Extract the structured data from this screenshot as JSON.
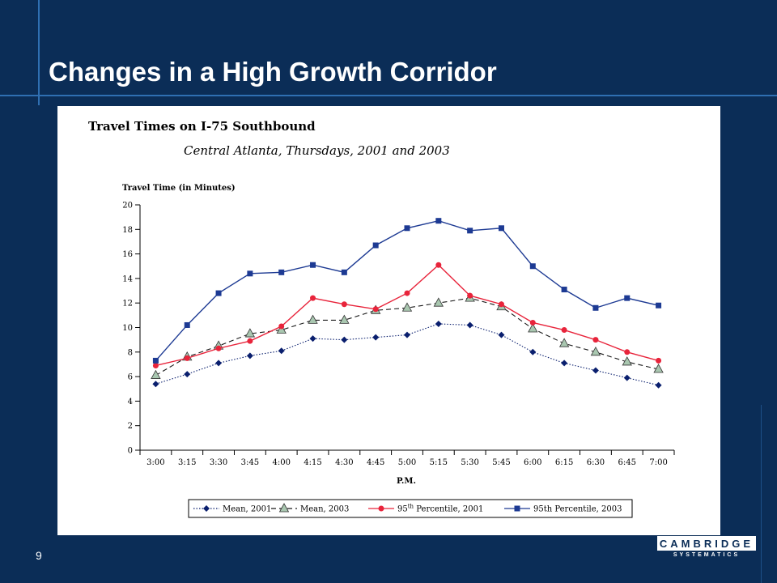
{
  "slide": {
    "title": "Changes in a High Growth Corridor",
    "page_number": "9",
    "logo_text": "CAMBRIDGE",
    "logo_subtext": "SYSTEMATICS",
    "colors": {
      "background": "#0b2d57",
      "rule": "#2f6fb2",
      "text": "#ffffff"
    }
  },
  "chart_data": {
    "type": "line",
    "title": "Travel Times on I-75 Southbound",
    "subtitle": "Central Atlanta, Thursdays, 2001 and 2003",
    "ylabel": "Travel Time (in Minutes)",
    "xlabel": "P.M.",
    "ylim": [
      0,
      20
    ],
    "yticks": [
      0,
      2,
      4,
      6,
      8,
      10,
      12,
      14,
      16,
      18,
      20
    ],
    "categories": [
      "3:00",
      "3:15",
      "3:30",
      "3:45",
      "4:00",
      "4:15",
      "4:30",
      "4:45",
      "5:00",
      "5:15",
      "5:30",
      "5:45",
      "6:00",
      "6:15",
      "6:30",
      "6:45",
      "7:00"
    ],
    "legend_position": "bottom",
    "grid": false,
    "series": [
      {
        "name": "Mean, 2001",
        "color": "#0a1f6e",
        "marker": "diamond",
        "dash": "dotted",
        "values": [
          5.4,
          6.2,
          7.1,
          7.7,
          8.1,
          9.1,
          9.0,
          9.2,
          9.4,
          10.3,
          10.2,
          9.4,
          8.0,
          7.1,
          6.5,
          5.9,
          5.3
        ]
      },
      {
        "name": "Mean, 2003",
        "color": "#1a1a1a",
        "fill": "#a9c7b0",
        "marker": "triangle",
        "dash": "dashed",
        "values": [
          6.1,
          7.6,
          8.5,
          9.5,
          9.8,
          10.6,
          10.6,
          11.4,
          11.6,
          12.0,
          12.4,
          11.7,
          9.9,
          8.7,
          8.0,
          7.2,
          6.6
        ]
      },
      {
        "name_prefix": "95",
        "name_sup": "th",
        "name": "Percentile, 2001",
        "color": "#e8243b",
        "marker": "circle",
        "dash": "solid",
        "values": [
          6.9,
          7.5,
          8.3,
          8.9,
          10.1,
          12.4,
          11.9,
          11.5,
          12.8,
          15.1,
          12.6,
          11.9,
          10.4,
          9.8,
          9.0,
          8.0,
          7.3
        ]
      },
      {
        "name": "95th Percentile, 2003",
        "color": "#1d3a93",
        "marker": "square",
        "dash": "solid",
        "values": [
          7.3,
          10.2,
          12.8,
          14.4,
          14.5,
          15.1,
          14.5,
          16.7,
          18.1,
          18.7,
          17.9,
          18.1,
          15.0,
          13.1,
          11.6,
          12.4,
          11.8
        ]
      }
    ]
  }
}
